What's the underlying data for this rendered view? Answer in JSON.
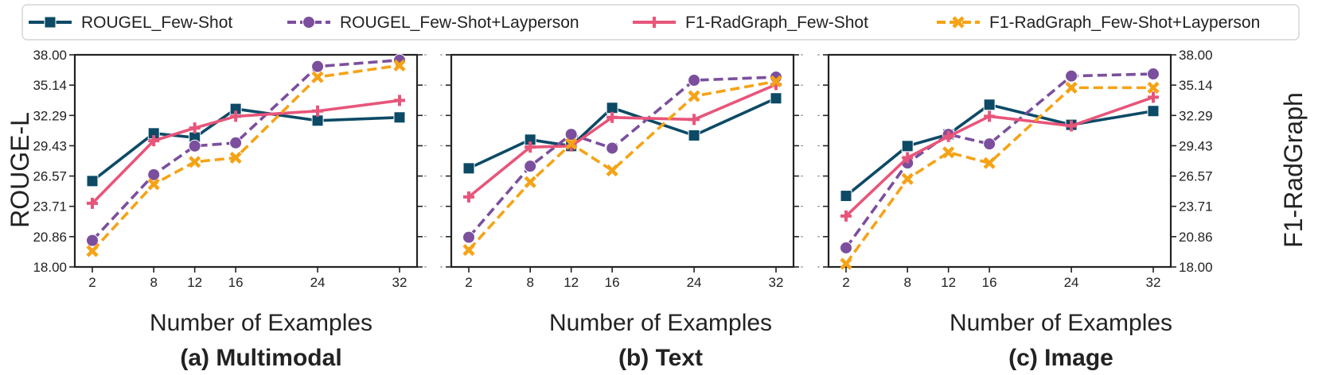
{
  "legend": [
    {
      "name": "ROUGEL_Few-Shot",
      "color": "#0c4a66",
      "marker": "square",
      "dash": "solid"
    },
    {
      "name": "ROUGEL_Few-Shot+Layperson",
      "color": "#7b4f9d",
      "marker": "circle",
      "dash": "dashed"
    },
    {
      "name": "F1-RadGraph_Few-Shot",
      "color": "#e8557a",
      "marker": "plus",
      "dash": "solid"
    },
    {
      "name": "F1-RadGraph_Few-Shot+Layperson",
      "color": "#f5a316",
      "marker": "x",
      "dash": "dashed"
    }
  ],
  "chart_data": [
    {
      "type": "line",
      "title": "(a) Multimodal",
      "xlabel": "Number of Examples",
      "ylabel": "ROUGE-L",
      "x": [
        2,
        8,
        12,
        16,
        24,
        32
      ],
      "ylim": [
        18.0,
        38.0
      ],
      "yticks": [
        "18.00",
        "20.86",
        "23.71",
        "26.57",
        "29.43",
        "32.29",
        "35.14",
        "38.00"
      ],
      "series": [
        {
          "name": "ROUGEL_Few-Shot",
          "values": [
            26.1,
            30.6,
            30.2,
            32.9,
            31.8,
            32.1
          ]
        },
        {
          "name": "ROUGEL_Few-Shot+Layperson",
          "values": [
            20.5,
            26.7,
            29.4,
            29.7,
            36.9,
            37.5
          ]
        },
        {
          "name": "F1-RadGraph_Few-Shot",
          "values": [
            24.0,
            29.9,
            31.1,
            32.2,
            32.7,
            33.7
          ]
        },
        {
          "name": "F1-RadGraph_Few-Shot+Layperson",
          "values": [
            19.5,
            25.8,
            27.9,
            28.3,
            35.9,
            37.0
          ]
        }
      ]
    },
    {
      "type": "line",
      "title": "(b) Text",
      "xlabel": "Number of Examples",
      "ylabel": "",
      "x": [
        2,
        8,
        12,
        16,
        24,
        32
      ],
      "ylim": [
        18.0,
        38.0
      ],
      "yticks": [],
      "series": [
        {
          "name": "ROUGEL_Few-Shot",
          "values": [
            27.3,
            30.0,
            29.4,
            33.0,
            30.4,
            33.9
          ]
        },
        {
          "name": "ROUGEL_Few-Shot+Layperson",
          "values": [
            20.8,
            27.5,
            30.5,
            29.2,
            35.6,
            35.9
          ]
        },
        {
          "name": "F1-RadGraph_Few-Shot",
          "values": [
            24.6,
            29.3,
            29.4,
            32.1,
            31.9,
            35.2
          ]
        },
        {
          "name": "F1-RadGraph_Few-Shot+Layperson",
          "values": [
            19.6,
            26.0,
            29.6,
            27.1,
            34.1,
            35.5
          ]
        }
      ]
    },
    {
      "type": "line",
      "title": "(c) Image",
      "xlabel": "Number of Examples",
      "ylabel": "F1-RadGraph",
      "x": [
        2,
        8,
        12,
        16,
        24,
        32
      ],
      "ylim": [
        18.0,
        38.0
      ],
      "yticks": [
        "18.00",
        "20.86",
        "23.71",
        "26.57",
        "29.43",
        "32.29",
        "35.14",
        "38.00"
      ],
      "series": [
        {
          "name": "ROUGEL_Few-Shot",
          "values": [
            24.7,
            29.4,
            30.5,
            33.3,
            31.4,
            32.7
          ]
        },
        {
          "name": "ROUGEL_Few-Shot+Layperson",
          "values": [
            19.8,
            27.8,
            30.5,
            29.6,
            36.0,
            36.2
          ]
        },
        {
          "name": "F1-RadGraph_Few-Shot",
          "values": [
            22.8,
            28.3,
            30.3,
            32.2,
            31.3,
            34.0
          ]
        },
        {
          "name": "F1-RadGraph_Few-Shot+Layperson",
          "values": [
            18.3,
            26.3,
            28.8,
            27.8,
            34.9,
            34.9
          ]
        }
      ]
    }
  ]
}
